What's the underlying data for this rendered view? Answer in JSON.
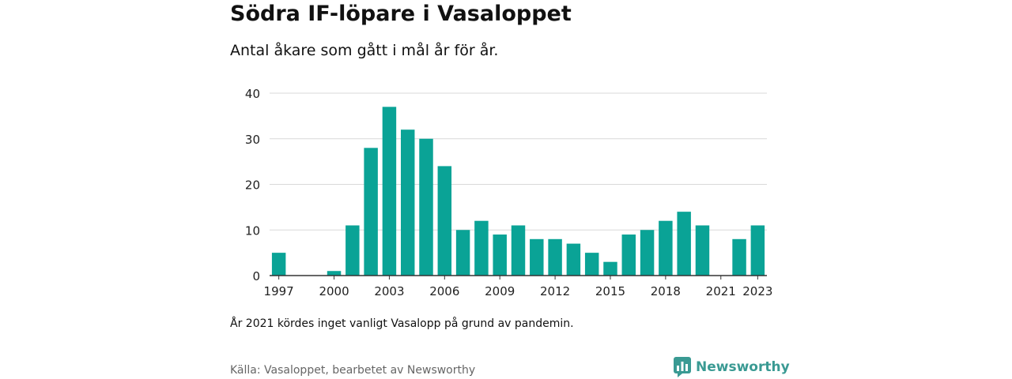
{
  "header": {
    "title": "Södra IF-löpare i Vasaloppet",
    "subtitle": "Antal åkare som gått i mål år för år."
  },
  "note": "År 2021 kördes inget vanligt Vasalopp på grund av pandemin.",
  "source": "Källa: Vasaloppet, bearbetet av Newsworthy",
  "brand": {
    "name": "Newsworthy",
    "icon": "newsworthy-logo-icon"
  },
  "colors": {
    "bar": "#0aa396",
    "grid": "#d9d9d9",
    "axis": "#333333",
    "brand": "#3a9a93"
  },
  "chart_data": {
    "type": "bar",
    "title": "Södra IF-löpare i Vasaloppet",
    "subtitle": "Antal åkare som gått i mål år för år.",
    "xlabel": "",
    "ylabel": "",
    "categories": [
      "1997",
      "1998",
      "1999",
      "2000",
      "2001",
      "2002",
      "2003",
      "2004",
      "2005",
      "2006",
      "2007",
      "2008",
      "2009",
      "2010",
      "2011",
      "2012",
      "2013",
      "2014",
      "2015",
      "2016",
      "2017",
      "2018",
      "2019",
      "2020",
      "2021",
      "2022",
      "2023"
    ],
    "values": [
      5,
      0,
      0,
      1,
      11,
      28,
      37,
      32,
      30,
      24,
      10,
      12,
      9,
      11,
      8,
      8,
      7,
      5,
      3,
      9,
      10,
      12,
      14,
      11,
      0,
      8,
      11
    ],
    "ylim": [
      0,
      40
    ],
    "yticks": [
      0,
      10,
      20,
      30,
      40
    ],
    "xticks": [
      "1997",
      "2000",
      "2003",
      "2006",
      "2009",
      "2012",
      "2015",
      "2018",
      "2021",
      "2023"
    ],
    "grid": true,
    "legend": "none"
  }
}
